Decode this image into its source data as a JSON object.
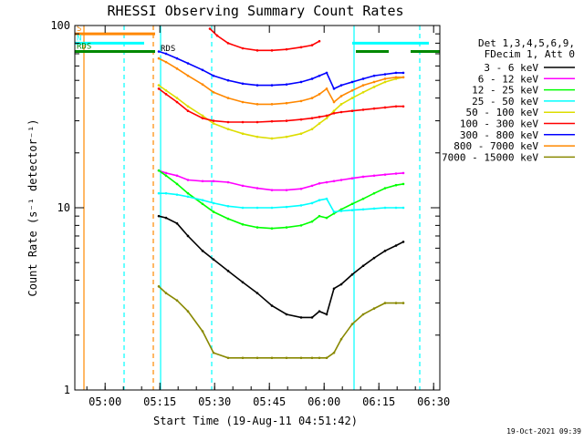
{
  "chart_data": {
    "type": "line",
    "title": "RHESSI Observing Summary Count Rates",
    "xlabel": "Start Time (19-Aug-11 04:51:42)",
    "ylabel": "Count Rate (s⁻¹ detector⁻¹)",
    "y_scale": "log",
    "ylim": [
      1,
      100
    ],
    "xlim_minutes": [
      0,
      100
    ],
    "x_ticks": [
      "05:00",
      "05:15",
      "05:30",
      "05:45",
      "06:00",
      "06:15",
      "06:30"
    ],
    "x_tick_minutes": [
      8.3,
      23.3,
      38.3,
      53.3,
      68.3,
      83.3,
      98.3
    ],
    "y_ticks": [
      "1",
      "10",
      "100"
    ],
    "y_tick_values": [
      1,
      10,
      100
    ],
    "legend_header": [
      "Det 1,3,4,5,6,9,",
      "FDecim 1, Att 0"
    ],
    "series": [
      {
        "name": "3 - 6 keV",
        "color": "#000000",
        "x": [
          23,
          25,
          28,
          31,
          35,
          38,
          42,
          46,
          50,
          54,
          58,
          62,
          65,
          67,
          69,
          71,
          73,
          76,
          79,
          82,
          85,
          88,
          90
        ],
        "y": [
          9,
          8.8,
          8.2,
          7,
          5.8,
          5.2,
          4.5,
          3.9,
          3.4,
          2.9,
          2.6,
          2.5,
          2.5,
          2.7,
          2.6,
          3.6,
          3.8,
          4.3,
          4.8,
          5.3,
          5.8,
          6.2,
          6.5
        ]
      },
      {
        "name": "6 - 12 keV",
        "color": "#ff00ff",
        "x": [
          23,
          25,
          28,
          31,
          35,
          38,
          42,
          46,
          50,
          54,
          58,
          62,
          65,
          67,
          69,
          71,
          73,
          76,
          79,
          82,
          85,
          88,
          90
        ],
        "y": [
          16,
          15.5,
          15,
          14.2,
          14,
          14,
          13.8,
          13.2,
          12.8,
          12.5,
          12.5,
          12.7,
          13.2,
          13.6,
          13.8,
          14,
          14.2,
          14.5,
          14.8,
          15,
          15.2,
          15.4,
          15.5
        ]
      },
      {
        "name": "12 - 25 keV",
        "color": "#00ff00",
        "x": [
          23,
          25,
          28,
          31,
          35,
          38,
          42,
          46,
          50,
          54,
          58,
          62,
          65,
          67,
          69,
          71,
          73,
          76,
          79,
          82,
          85,
          88,
          90
        ],
        "y": [
          16,
          15,
          13.5,
          12,
          10.5,
          9.5,
          8.7,
          8.1,
          7.8,
          7.7,
          7.8,
          8,
          8.4,
          9,
          8.8,
          9.3,
          9.8,
          10.5,
          11.2,
          12,
          12.8,
          13.3,
          13.5
        ]
      },
      {
        "name": "25 - 50 keV",
        "color": "#00ffff",
        "x": [
          23,
          25,
          28,
          31,
          35,
          38,
          42,
          46,
          50,
          54,
          58,
          62,
          65,
          67,
          69,
          71,
          73,
          76,
          79,
          82,
          85,
          88,
          90
        ],
        "y": [
          12,
          12,
          11.8,
          11.5,
          11,
          10.6,
          10.2,
          10,
          10,
          10,
          10.1,
          10.3,
          10.6,
          11,
          11.2,
          9.5,
          9.6,
          9.7,
          9.8,
          9.9,
          10,
          10,
          10
        ]
      },
      {
        "name": "50 - 100 keV",
        "color": "#dddd00",
        "x": [
          23,
          25,
          28,
          31,
          35,
          38,
          42,
          46,
          50,
          54,
          58,
          62,
          65,
          67,
          69,
          71,
          73,
          76,
          79,
          82,
          85,
          88,
          90
        ],
        "y": [
          47,
          44,
          40,
          36,
          32,
          29,
          27,
          25.5,
          24.5,
          24,
          24.5,
          25.5,
          27,
          29,
          31,
          34,
          37,
          40,
          43,
          46,
          49,
          51,
          52
        ]
      },
      {
        "name": "100 - 300 keV",
        "color": "#ff0000",
        "x": [
          23,
          25,
          28,
          31,
          35,
          38,
          42,
          46,
          50,
          54,
          58,
          62,
          65,
          67,
          69,
          71,
          73,
          76,
          79,
          82,
          85,
          88,
          90
        ],
        "y": [
          45,
          42,
          38,
          34,
          31,
          30,
          29.5,
          29.5,
          29.5,
          29.8,
          30,
          30.5,
          31,
          31.5,
          32,
          33,
          33.5,
          34,
          34.5,
          35,
          35.5,
          36,
          36
        ]
      },
      {
        "name": "300 - 800 keV",
        "color": "#0000ff",
        "x": [
          23,
          25,
          28,
          31,
          35,
          38,
          42,
          46,
          50,
          54,
          58,
          62,
          65,
          67,
          69,
          71,
          73,
          76,
          79,
          82,
          85,
          88,
          90
        ],
        "y": [
          72,
          70,
          66,
          62,
          57,
          53,
          50,
          48,
          47,
          47,
          47.5,
          49,
          51,
          53,
          55,
          45,
          47,
          49,
          51,
          53,
          54,
          55,
          55
        ]
      },
      {
        "name": "800 - 7000 keV",
        "color": "#ff8800",
        "x": [
          23,
          25,
          28,
          31,
          35,
          38,
          42,
          46,
          50,
          54,
          58,
          62,
          65,
          67,
          69,
          71,
          73,
          76,
          79,
          82,
          85,
          88,
          90
        ],
        "y": [
          66,
          63,
          58,
          53,
          47.5,
          43,
          40,
          38,
          37,
          37,
          37.5,
          38.5,
          40,
          42,
          45,
          38,
          41,
          44,
          47,
          49,
          51,
          52,
          52
        ]
      },
      {
        "name": "7000 - 15000 keV",
        "color": "#888800",
        "x": [
          23,
          25,
          28,
          31,
          35,
          38,
          42,
          46,
          50,
          54,
          58,
          62,
          65,
          67,
          69,
          71,
          73,
          76,
          79,
          82,
          85,
          88,
          90
        ],
        "y": [
          3.7,
          3.4,
          3.1,
          2.7,
          2.1,
          1.6,
          1.5,
          1.5,
          1.5,
          1.5,
          1.5,
          1.5,
          1.5,
          1.5,
          1.5,
          1.6,
          1.9,
          2.3,
          2.6,
          2.8,
          3,
          3,
          3
        ]
      }
    ],
    "top_series": {
      "name": "",
      "color": "#ff0000",
      "x": [
        37,
        39,
        42,
        46,
        50,
        54,
        58,
        62,
        65,
        67
      ],
      "y": [
        96,
        88,
        80,
        75,
        73,
        73,
        74,
        76,
        78,
        82
      ]
    },
    "status_flags": [
      {
        "label": "S",
        "color": "#ff8800",
        "level": 90,
        "segments": [
          [
            0,
            22
          ]
        ]
      },
      {
        "label": "N",
        "color": "#00ffff",
        "level": 80,
        "segments": [
          [
            0,
            19
          ],
          [
            76,
            97
          ]
        ]
      },
      {
        "label": "RDS",
        "color": "#008800",
        "level": 72,
        "segments": [
          [
            0,
            22
          ],
          [
            77,
            86
          ],
          [
            92,
            100
          ]
        ]
      },
      {
        "label": "RDS",
        "color": "#ffffff",
        "level": 70,
        "segments": [
          [
            23,
            76
          ]
        ]
      }
    ],
    "vertical_markers": [
      {
        "color": "#ff8800",
        "style": "solid",
        "minute": 2.5
      },
      {
        "color": "#00ffff",
        "style": "dashed",
        "minute": 13.5
      },
      {
        "color": "#ff8800",
        "style": "dashed",
        "minute": 21.5
      },
      {
        "color": "#00ffff",
        "style": "solid",
        "minute": 23.5
      },
      {
        "color": "#00ffff",
        "style": "dashed",
        "minute": 37.5
      },
      {
        "color": "#00ffff",
        "style": "solid",
        "minute": 76.5
      },
      {
        "color": "#00ffff",
        "style": "dashed",
        "minute": 94.5
      }
    ],
    "grid": false,
    "legend_placement": "right"
  },
  "footer": {
    "stamp": "19-Oct-2021 09:39"
  }
}
